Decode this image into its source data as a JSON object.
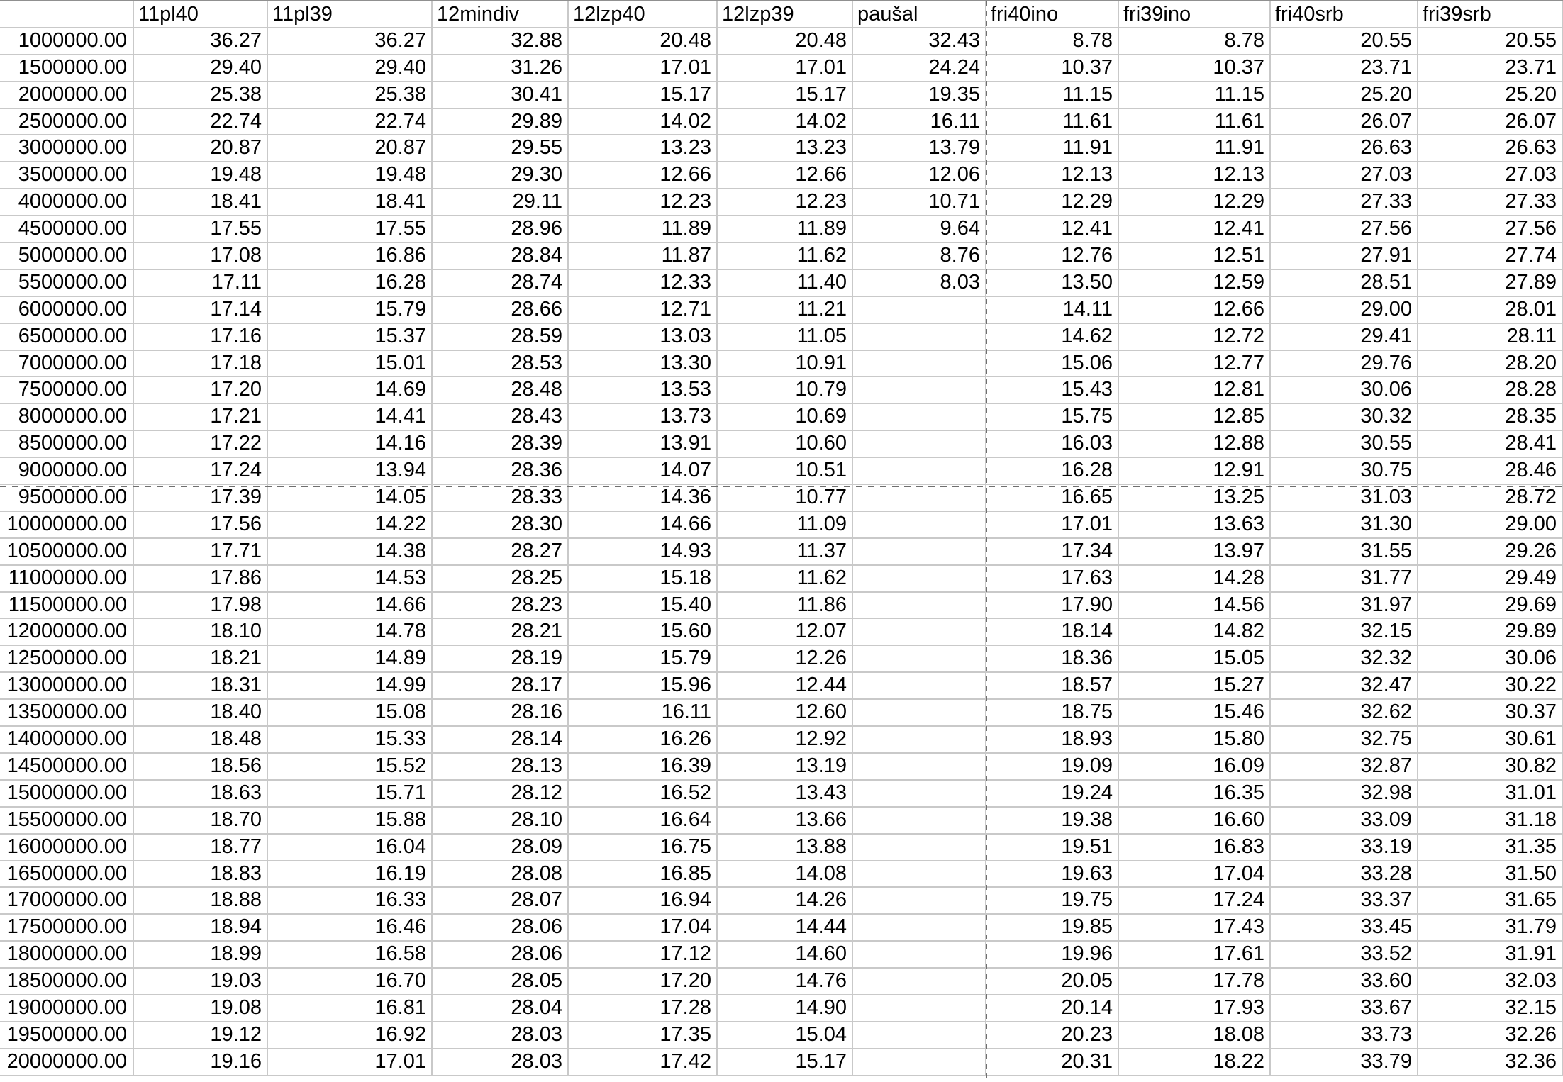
{
  "app": {
    "type": "spreadsheet-grid-view"
  },
  "colors": {
    "background": "#ffffff",
    "gridline": "#c9c9c9",
    "text": "#000000",
    "page_break_line": "#6f6f6f",
    "top_border": "#909090"
  },
  "page_breaks": {
    "vertical_after_column": "paušal",
    "horizontal_after_row": "9000000.00"
  },
  "table": {
    "header": [
      "",
      "11pl40",
      "11pl39",
      "12mindiv",
      "12lzp40",
      "12lzp39",
      "paušal",
      "fri40ino",
      "fri39ino",
      "fri40srb",
      "fri39srb"
    ],
    "rows": [
      {
        "label": "1000000.00",
        "values": [
          "36.27",
          "36.27",
          "32.88",
          "20.48",
          "20.48",
          "32.43",
          "8.78",
          "8.78",
          "20.55",
          "20.55"
        ]
      },
      {
        "label": "1500000.00",
        "values": [
          "29.40",
          "29.40",
          "31.26",
          "17.01",
          "17.01",
          "24.24",
          "10.37",
          "10.37",
          "23.71",
          "23.71"
        ]
      },
      {
        "label": "2000000.00",
        "values": [
          "25.38",
          "25.38",
          "30.41",
          "15.17",
          "15.17",
          "19.35",
          "11.15",
          "11.15",
          "25.20",
          "25.20"
        ]
      },
      {
        "label": "2500000.00",
        "values": [
          "22.74",
          "22.74",
          "29.89",
          "14.02",
          "14.02",
          "16.11",
          "11.61",
          "11.61",
          "26.07",
          "26.07"
        ]
      },
      {
        "label": "3000000.00",
        "values": [
          "20.87",
          "20.87",
          "29.55",
          "13.23",
          "13.23",
          "13.79",
          "11.91",
          "11.91",
          "26.63",
          "26.63"
        ]
      },
      {
        "label": "3500000.00",
        "values": [
          "19.48",
          "19.48",
          "29.30",
          "12.66",
          "12.66",
          "12.06",
          "12.13",
          "12.13",
          "27.03",
          "27.03"
        ]
      },
      {
        "label": "4000000.00",
        "values": [
          "18.41",
          "18.41",
          "29.11",
          "12.23",
          "12.23",
          "10.71",
          "12.29",
          "12.29",
          "27.33",
          "27.33"
        ]
      },
      {
        "label": "4500000.00",
        "values": [
          "17.55",
          "17.55",
          "28.96",
          "11.89",
          "11.89",
          "9.64",
          "12.41",
          "12.41",
          "27.56",
          "27.56"
        ]
      },
      {
        "label": "5000000.00",
        "values": [
          "17.08",
          "16.86",
          "28.84",
          "11.87",
          "11.62",
          "8.76",
          "12.76",
          "12.51",
          "27.91",
          "27.74"
        ]
      },
      {
        "label": "5500000.00",
        "values": [
          "17.11",
          "16.28",
          "28.74",
          "12.33",
          "11.40",
          "8.03",
          "13.50",
          "12.59",
          "28.51",
          "27.89"
        ]
      },
      {
        "label": "6000000.00",
        "values": [
          "17.14",
          "15.79",
          "28.66",
          "12.71",
          "11.21",
          "",
          "14.11",
          "12.66",
          "29.00",
          "28.01"
        ]
      },
      {
        "label": "6500000.00",
        "values": [
          "17.16",
          "15.37",
          "28.59",
          "13.03",
          "11.05",
          "",
          "14.62",
          "12.72",
          "29.41",
          "28.11"
        ]
      },
      {
        "label": "7000000.00",
        "values": [
          "17.18",
          "15.01",
          "28.53",
          "13.30",
          "10.91",
          "",
          "15.06",
          "12.77",
          "29.76",
          "28.20"
        ]
      },
      {
        "label": "7500000.00",
        "values": [
          "17.20",
          "14.69",
          "28.48",
          "13.53",
          "10.79",
          "",
          "15.43",
          "12.81",
          "30.06",
          "28.28"
        ]
      },
      {
        "label": "8000000.00",
        "values": [
          "17.21",
          "14.41",
          "28.43",
          "13.73",
          "10.69",
          "",
          "15.75",
          "12.85",
          "30.32",
          "28.35"
        ]
      },
      {
        "label": "8500000.00",
        "values": [
          "17.22",
          "14.16",
          "28.39",
          "13.91",
          "10.60",
          "",
          "16.03",
          "12.88",
          "30.55",
          "28.41"
        ]
      },
      {
        "label": "9000000.00",
        "values": [
          "17.24",
          "13.94",
          "28.36",
          "14.07",
          "10.51",
          "",
          "16.28",
          "12.91",
          "30.75",
          "28.46"
        ]
      },
      {
        "label": "9500000.00",
        "values": [
          "17.39",
          "14.05",
          "28.33",
          "14.36",
          "10.77",
          "",
          "16.65",
          "13.25",
          "31.03",
          "28.72"
        ]
      },
      {
        "label": "10000000.00",
        "values": [
          "17.56",
          "14.22",
          "28.30",
          "14.66",
          "11.09",
          "",
          "17.01",
          "13.63",
          "31.30",
          "29.00"
        ]
      },
      {
        "label": "10500000.00",
        "values": [
          "17.71",
          "14.38",
          "28.27",
          "14.93",
          "11.37",
          "",
          "17.34",
          "13.97",
          "31.55",
          "29.26"
        ]
      },
      {
        "label": "11000000.00",
        "values": [
          "17.86",
          "14.53",
          "28.25",
          "15.18",
          "11.62",
          "",
          "17.63",
          "14.28",
          "31.77",
          "29.49"
        ]
      },
      {
        "label": "11500000.00",
        "values": [
          "17.98",
          "14.66",
          "28.23",
          "15.40",
          "11.86",
          "",
          "17.90",
          "14.56",
          "31.97",
          "29.69"
        ]
      },
      {
        "label": "12000000.00",
        "values": [
          "18.10",
          "14.78",
          "28.21",
          "15.60",
          "12.07",
          "",
          "18.14",
          "14.82",
          "32.15",
          "29.89"
        ]
      },
      {
        "label": "12500000.00",
        "values": [
          "18.21",
          "14.89",
          "28.19",
          "15.79",
          "12.26",
          "",
          "18.36",
          "15.05",
          "32.32",
          "30.06"
        ]
      },
      {
        "label": "13000000.00",
        "values": [
          "18.31",
          "14.99",
          "28.17",
          "15.96",
          "12.44",
          "",
          "18.57",
          "15.27",
          "32.47",
          "30.22"
        ]
      },
      {
        "label": "13500000.00",
        "values": [
          "18.40",
          "15.08",
          "28.16",
          "16.11",
          "12.60",
          "",
          "18.75",
          "15.46",
          "32.62",
          "30.37"
        ]
      },
      {
        "label": "14000000.00",
        "values": [
          "18.48",
          "15.33",
          "28.14",
          "16.26",
          "12.92",
          "",
          "18.93",
          "15.80",
          "32.75",
          "30.61"
        ]
      },
      {
        "label": "14500000.00",
        "values": [
          "18.56",
          "15.52",
          "28.13",
          "16.39",
          "13.19",
          "",
          "19.09",
          "16.09",
          "32.87",
          "30.82"
        ]
      },
      {
        "label": "15000000.00",
        "values": [
          "18.63",
          "15.71",
          "28.12",
          "16.52",
          "13.43",
          "",
          "19.24",
          "16.35",
          "32.98",
          "31.01"
        ]
      },
      {
        "label": "15500000.00",
        "values": [
          "18.70",
          "15.88",
          "28.10",
          "16.64",
          "13.66",
          "",
          "19.38",
          "16.60",
          "33.09",
          "31.18"
        ]
      },
      {
        "label": "16000000.00",
        "values": [
          "18.77",
          "16.04",
          "28.09",
          "16.75",
          "13.88",
          "",
          "19.51",
          "16.83",
          "33.19",
          "31.35"
        ]
      },
      {
        "label": "16500000.00",
        "values": [
          "18.83",
          "16.19",
          "28.08",
          "16.85",
          "14.08",
          "",
          "19.63",
          "17.04",
          "33.28",
          "31.50"
        ]
      },
      {
        "label": "17000000.00",
        "values": [
          "18.88",
          "16.33",
          "28.07",
          "16.94",
          "14.26",
          "",
          "19.75",
          "17.24",
          "33.37",
          "31.65"
        ]
      },
      {
        "label": "17500000.00",
        "values": [
          "18.94",
          "16.46",
          "28.06",
          "17.04",
          "14.44",
          "",
          "19.85",
          "17.43",
          "33.45",
          "31.79"
        ]
      },
      {
        "label": "18000000.00",
        "values": [
          "18.99",
          "16.58",
          "28.06",
          "17.12",
          "14.60",
          "",
          "19.96",
          "17.61",
          "33.52",
          "31.91"
        ]
      },
      {
        "label": "18500000.00",
        "values": [
          "19.03",
          "16.70",
          "28.05",
          "17.20",
          "14.76",
          "",
          "20.05",
          "17.78",
          "33.60",
          "32.03"
        ]
      },
      {
        "label": "19000000.00",
        "values": [
          "19.08",
          "16.81",
          "28.04",
          "17.28",
          "14.90",
          "",
          "20.14",
          "17.93",
          "33.67",
          "32.15"
        ]
      },
      {
        "label": "19500000.00",
        "values": [
          "19.12",
          "16.92",
          "28.03",
          "17.35",
          "15.04",
          "",
          "20.23",
          "18.08",
          "33.73",
          "32.26"
        ]
      },
      {
        "label": "20000000.00",
        "values": [
          "19.16",
          "17.01",
          "28.03",
          "17.42",
          "15.17",
          "",
          "20.31",
          "18.22",
          "33.79",
          "32.36"
        ]
      }
    ]
  }
}
